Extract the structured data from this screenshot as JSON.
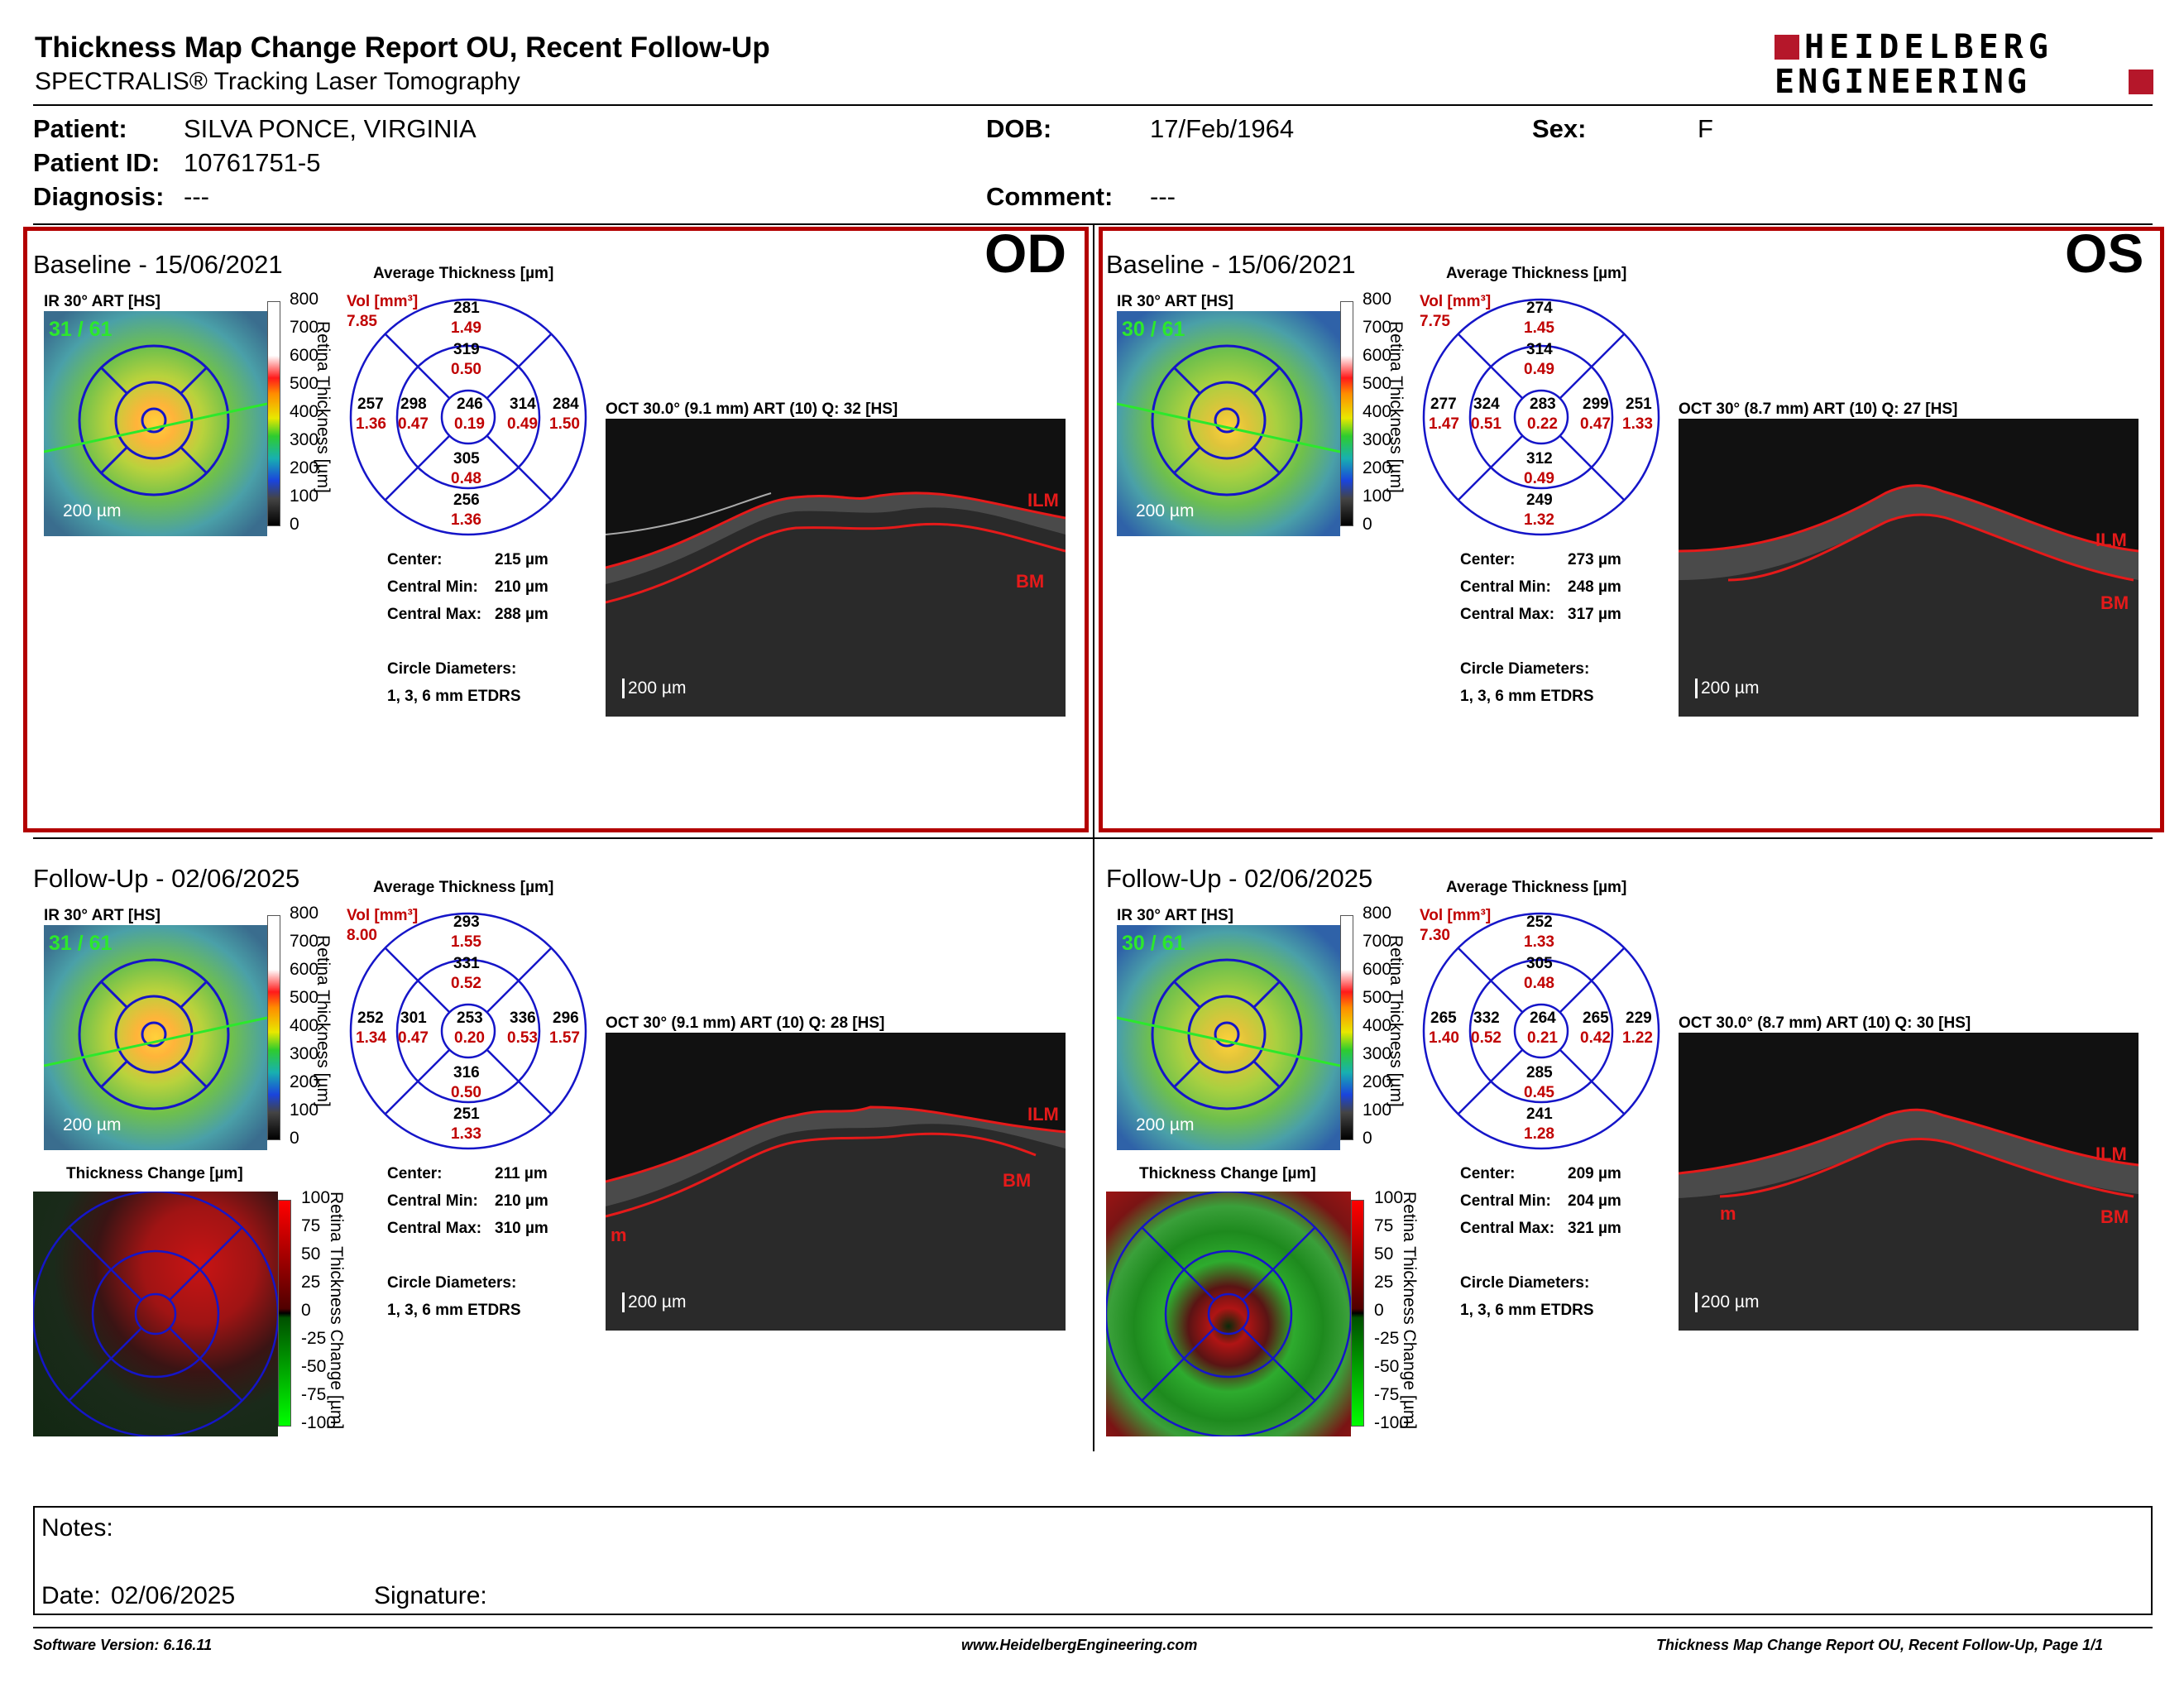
{
  "report": {
    "title": "Thickness Map Change Report OU, Recent Follow-Up",
    "subtitle": "SPECTRALIS® Tracking Laser Tomography",
    "logo_line1": "HEIDELBERG",
    "logo_line2": "ENGINEERING"
  },
  "patient": {
    "name_label": "Patient:",
    "name": "SILVA PONCE, VIRGINIA",
    "id_label": "Patient ID:",
    "id": "10761751-5",
    "diagnosis_label": "Diagnosis:",
    "diagnosis": "---",
    "dob_label": "DOB:",
    "dob": "17/Feb/1964",
    "comment_label": "Comment:",
    "comment": "---",
    "sex_label": "Sex:",
    "sex": "F"
  },
  "common": {
    "avg_thickness_title": "Average Thickness [µm]",
    "vol_label": "Vol [mm³]",
    "ir_label": "IR 30° ART [HS]",
    "scale_200": "200 µm",
    "center_label": "Center:",
    "central_min_label": "Central Min:",
    "central_max_label": "Central Max:",
    "circle_diam_label": "Circle Diameters:",
    "circle_diam_value": "1, 3, 6 mm ETDRS",
    "retina_thickness_axis": "Retina Thickness [µm]",
    "thickness_ticks": [
      "800",
      "700",
      "600",
      "500",
      "400",
      "300",
      "200",
      "100",
      "0"
    ],
    "change_title": "Thickness Change [µm]",
    "change_axis": "Retina Thickness Change [µm]",
    "change_ticks": [
      "100",
      "75",
      "50",
      "25",
      "0",
      "-25",
      "-50",
      "-75",
      "-100"
    ],
    "ilm": "ILM",
    "bm": "BM",
    "m": "m"
  },
  "od": {
    "eye": "OD",
    "baseline": {
      "title": "Baseline - 15/06/2021",
      "frame_count": "31 / 61",
      "vol_total": "7.85",
      "sectors": {
        "outer_sup": {
          "t": "281",
          "v": "1.49"
        },
        "inner_sup": {
          "t": "319",
          "v": "0.50"
        },
        "outer_left": {
          "t": "257",
          "v": "1.36"
        },
        "inner_left": {
          "t": "298",
          "v": "0.47"
        },
        "center": {
          "t": "246",
          "v": "0.19"
        },
        "inner_right": {
          "t": "314",
          "v": "0.49"
        },
        "outer_right": {
          "t": "284",
          "v": "1.50"
        },
        "inner_inf": {
          "t": "305",
          "v": "0.48"
        },
        "outer_inf": {
          "t": "256",
          "v": "1.36"
        }
      },
      "center": "215 µm",
      "central_min": "210 µm",
      "central_max": "288 µm",
      "oct_title": "OCT 30.0° (9.1 mm) ART (10) Q: 32 [HS]"
    },
    "followup": {
      "title": "Follow-Up - 02/06/2025",
      "frame_count": "31 / 61",
      "vol_total": "8.00",
      "sectors": {
        "outer_sup": {
          "t": "293",
          "v": "1.55"
        },
        "inner_sup": {
          "t": "331",
          "v": "0.52"
        },
        "outer_left": {
          "t": "252",
          "v": "1.34"
        },
        "inner_left": {
          "t": "301",
          "v": "0.47"
        },
        "center": {
          "t": "253",
          "v": "0.20"
        },
        "inner_right": {
          "t": "336",
          "v": "0.53"
        },
        "outer_right": {
          "t": "296",
          "v": "1.57"
        },
        "inner_inf": {
          "t": "316",
          "v": "0.50"
        },
        "outer_inf": {
          "t": "251",
          "v": "1.33"
        }
      },
      "center": "211 µm",
      "central_min": "210 µm",
      "central_max": "310 µm",
      "oct_title": "OCT 30° (9.1 mm) ART (10) Q: 28 [HS]"
    }
  },
  "os": {
    "eye": "OS",
    "baseline": {
      "title": "Baseline - 15/06/2021",
      "frame_count": "30 / 61",
      "vol_total": "7.75",
      "sectors": {
        "outer_sup": {
          "t": "274",
          "v": "1.45"
        },
        "inner_sup": {
          "t": "314",
          "v": "0.49"
        },
        "outer_left": {
          "t": "277",
          "v": "1.47"
        },
        "inner_left": {
          "t": "324",
          "v": "0.51"
        },
        "center": {
          "t": "283",
          "v": "0.22"
        },
        "inner_right": {
          "t": "299",
          "v": "0.47"
        },
        "outer_right": {
          "t": "251",
          "v": "1.33"
        },
        "inner_inf": {
          "t": "312",
          "v": "0.49"
        },
        "outer_inf": {
          "t": "249",
          "v": "1.32"
        }
      },
      "center": "273 µm",
      "central_min": "248 µm",
      "central_max": "317 µm",
      "oct_title": "OCT 30° (8.7 mm) ART (10) Q: 27 [HS]"
    },
    "followup": {
      "title": "Follow-Up - 02/06/2025",
      "frame_count": "30 / 61",
      "vol_total": "7.30",
      "sectors": {
        "outer_sup": {
          "t": "252",
          "v": "1.33"
        },
        "inner_sup": {
          "t": "305",
          "v": "0.48"
        },
        "outer_left": {
          "t": "265",
          "v": "1.40"
        },
        "inner_left": {
          "t": "332",
          "v": "0.52"
        },
        "center": {
          "t": "264",
          "v": "0.21"
        },
        "inner_right": {
          "t": "265",
          "v": "0.42"
        },
        "outer_right": {
          "t": "229",
          "v": "1.22"
        },
        "inner_inf": {
          "t": "285",
          "v": "0.45"
        },
        "outer_inf": {
          "t": "241",
          "v": "1.28"
        }
      },
      "center": "209 µm",
      "central_min": "204 µm",
      "central_max": "321 µm",
      "oct_title": "OCT 30.0° (8.7 mm) ART (10) Q: 30 [HS]"
    }
  },
  "notes": {
    "notes_label": "Notes:",
    "date_label": "Date:",
    "date": "02/06/2025",
    "signature_label": "Signature:"
  },
  "footer": {
    "software": "Software Version: 6.16.11",
    "website": "www.HeidelbergEngineering.com",
    "page": "Thickness Map Change Report OU, Recent Follow-Up, Page 1/1"
  },
  "colors": {
    "frame_red": "#b30000",
    "value_red": "#c00000",
    "grid_blue": "#1515c8",
    "logo_red": "#b5172a"
  }
}
